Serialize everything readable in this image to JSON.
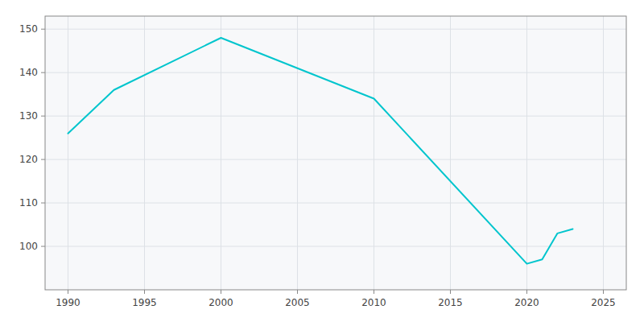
{
  "chart_data": {
    "type": "line",
    "x": [
      1990,
      1993,
      2000,
      2005,
      2010,
      2020,
      2021,
      2022,
      2023
    ],
    "values": [
      126,
      136,
      148,
      141,
      134,
      96,
      97,
      103,
      104
    ],
    "color": "#00c5cd",
    "xlim": [
      1988.5,
      2026.5
    ],
    "ylim": [
      90,
      153
    ],
    "xticks": [
      1990,
      1995,
      2000,
      2005,
      2010,
      2015,
      2020,
      2025
    ],
    "yticks": [
      100,
      110,
      120,
      130,
      140,
      150
    ],
    "grid": true
  }
}
